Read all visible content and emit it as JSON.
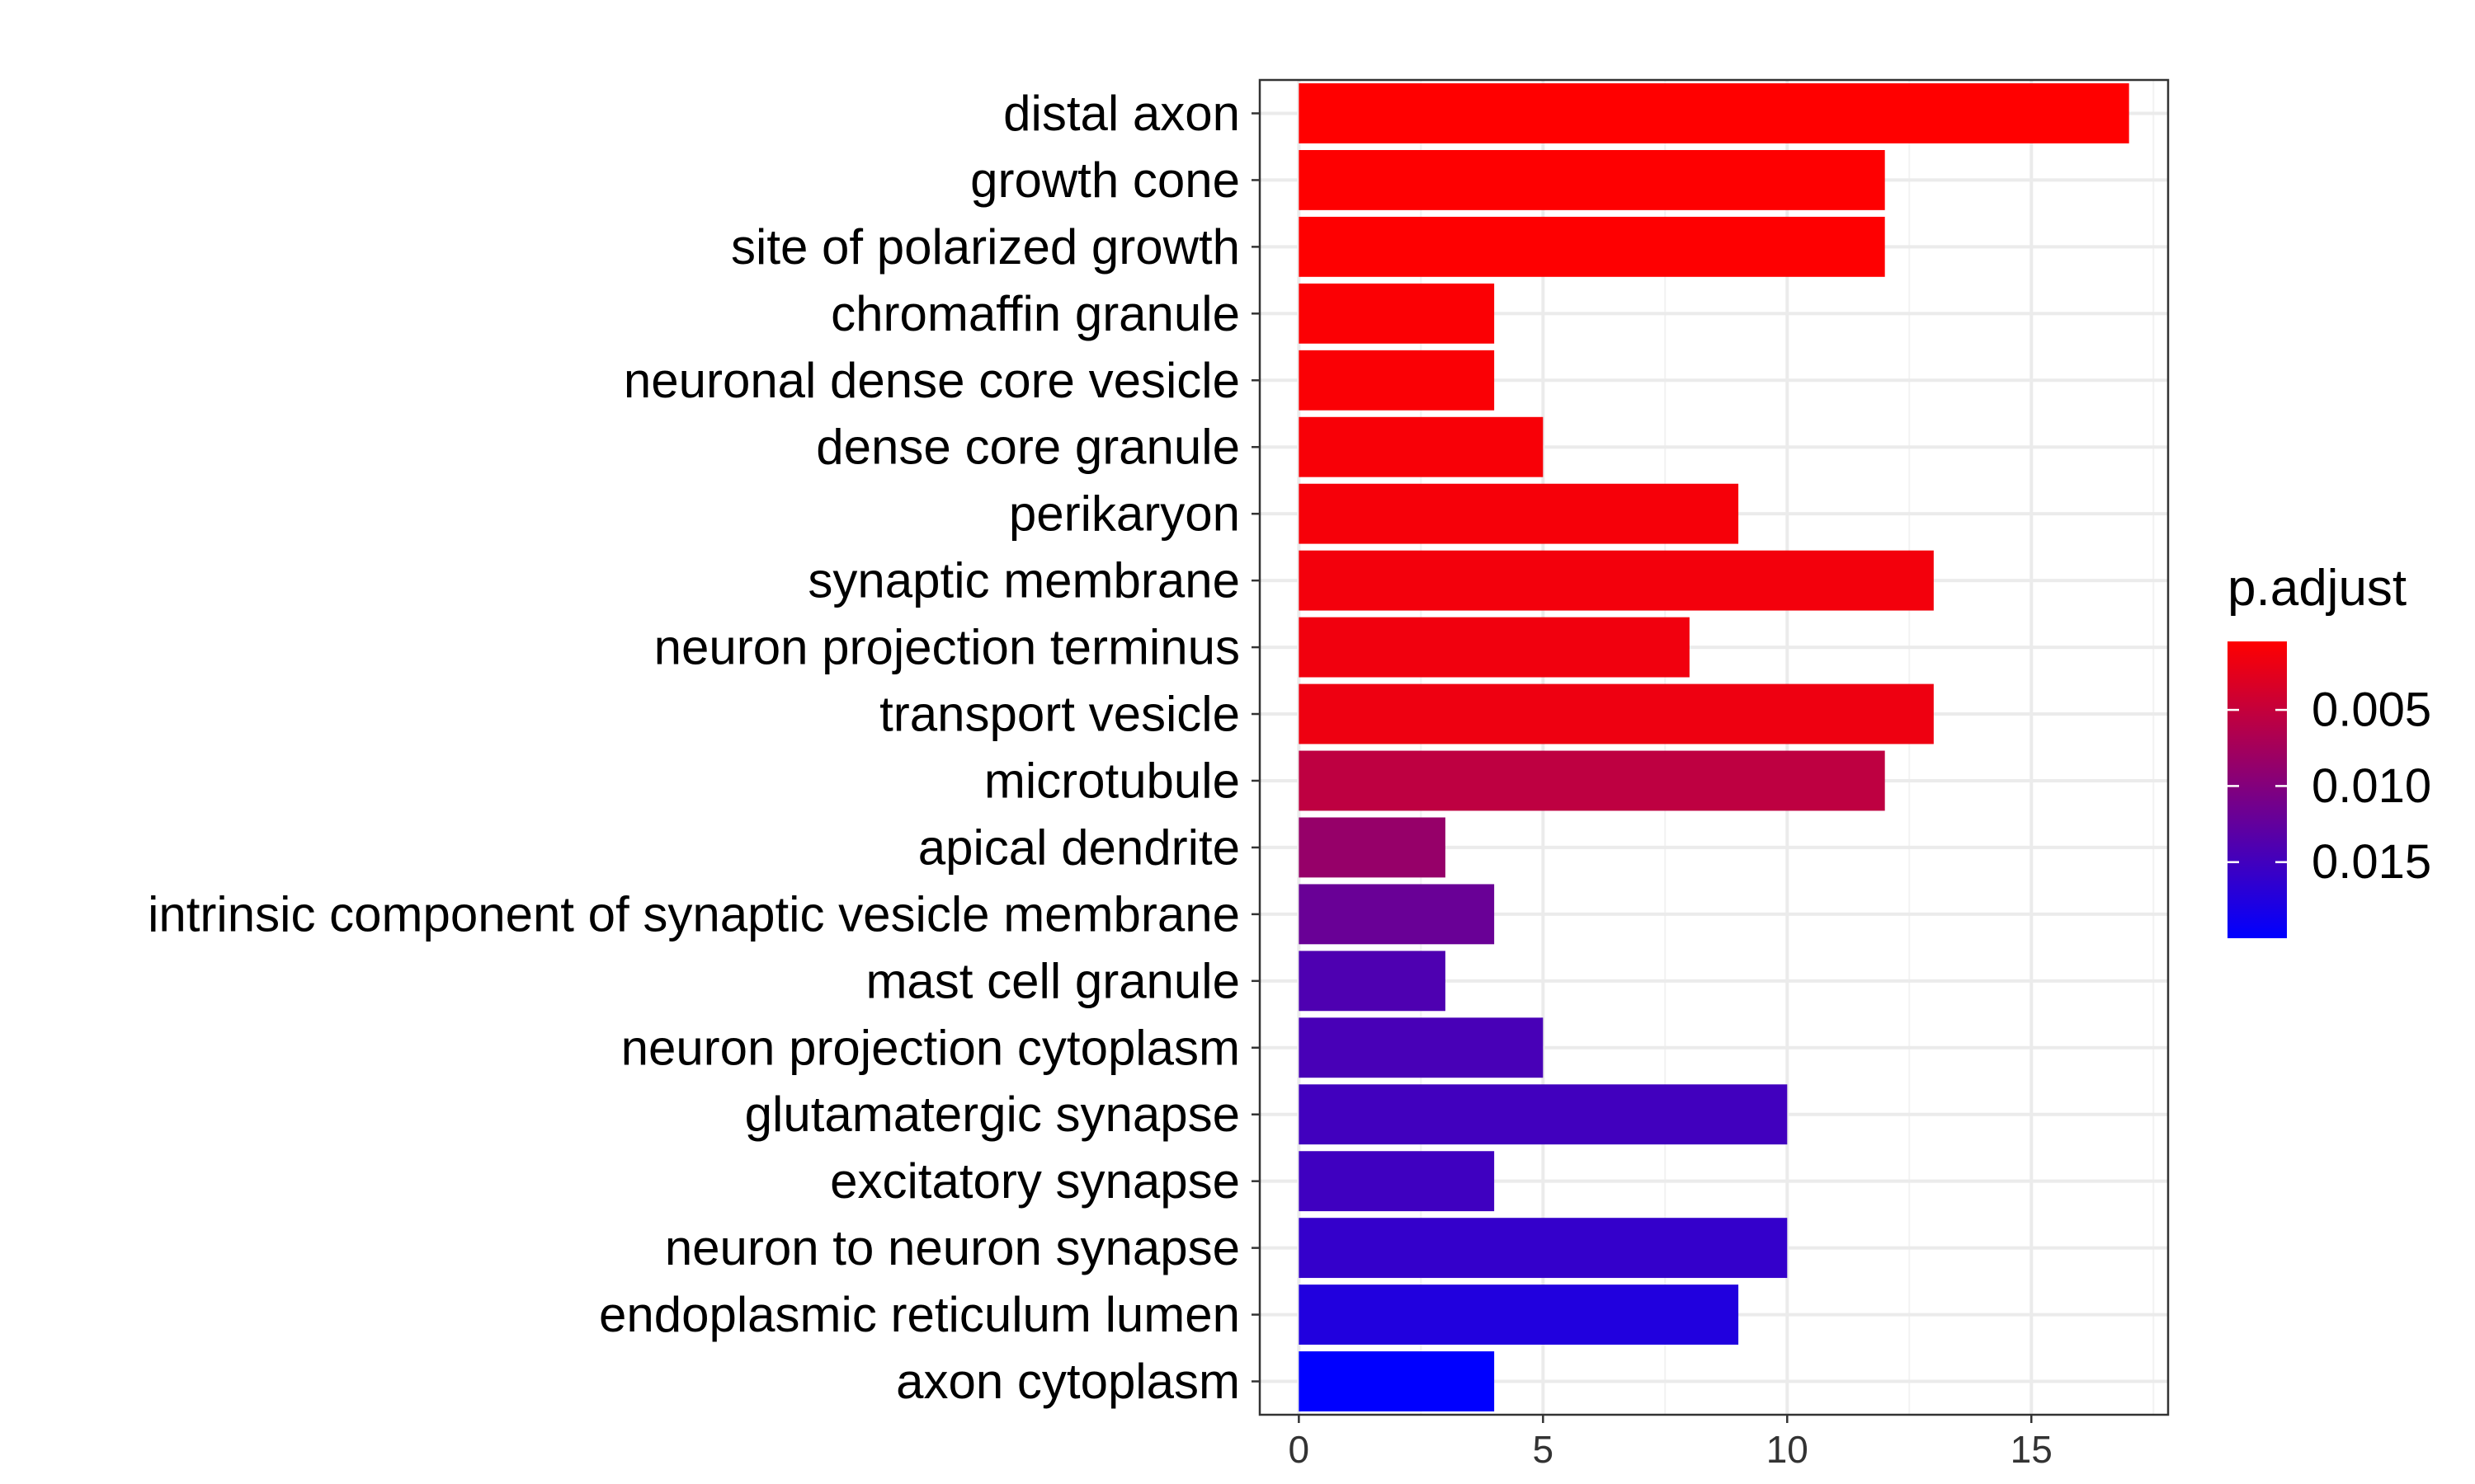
{
  "chart_data": {
    "type": "bar",
    "orientation": "horizontal",
    "categories": [
      "distal axon",
      "growth cone",
      "site of polarized growth",
      "chromaffin granule",
      "neuronal dense core vesicle",
      "dense core granule",
      "perikaryon",
      "synaptic membrane",
      "neuron projection terminus",
      "transport vesicle",
      "microtubule",
      "apical dendrite",
      "intrinsic component of synaptic vesicle membrane",
      "mast cell granule",
      "neuron projection cytoplasm",
      "glutamatergic synapse",
      "excitatory synapse",
      "neuron to neuron synapse",
      "endoplasmic reticulum lumen",
      "axon cytoplasm"
    ],
    "values": [
      17,
      12,
      12,
      4,
      4,
      5,
      9,
      13,
      8,
      13,
      12,
      3,
      4,
      3,
      5,
      10,
      4,
      10,
      9,
      4
    ],
    "p_adjust": [
      0.0005,
      0.0006,
      0.0006,
      0.0008,
      0.0009,
      0.001,
      0.0012,
      0.0014,
      0.0016,
      0.0018,
      0.0055,
      0.0085,
      0.012,
      0.014,
      0.0145,
      0.015,
      0.0152,
      0.016,
      0.0175,
      0.02
    ],
    "xlim": [
      -0.8,
      17.8
    ],
    "xticks": [
      "0",
      "5",
      "10",
      "15"
    ],
    "xtick_values": [
      0,
      5,
      10,
      15
    ],
    "grid": true,
    "legend": {
      "title": "p.adjust",
      "position": "right",
      "ticks": [
        "0.005",
        "0.010",
        "0.015"
      ],
      "tick_values": [
        0.005,
        0.01,
        0.015
      ],
      "range": [
        0.0005,
        0.02
      ],
      "color_low": "#FF0000",
      "color_high": "#0000FF"
    }
  }
}
